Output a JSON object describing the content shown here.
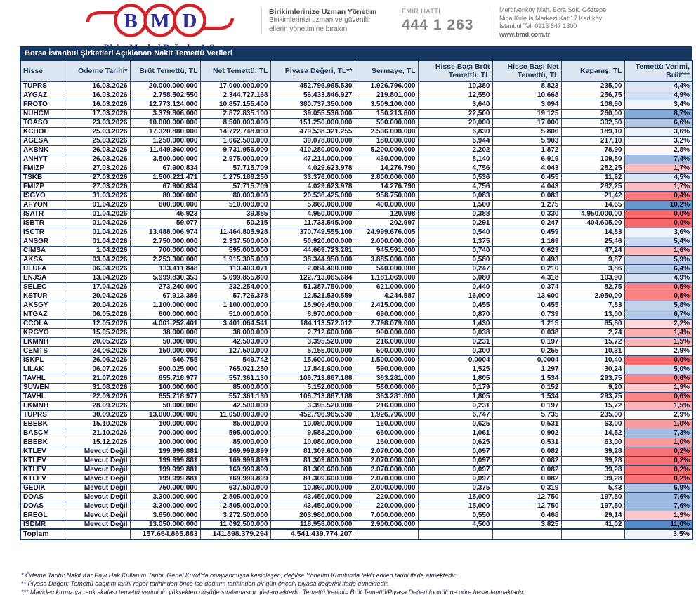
{
  "header": {
    "logo": {
      "letters": [
        "B",
        "M",
        "D"
      ],
      "company": "Bizim Menkul Değerler A.Ş."
    },
    "slogan": {
      "title": "Birikimlerinize Uzman Yönetim",
      "line1": "Birikimlerinizi uzman ve güvenilir",
      "line2": "ellerin yönetimine bırakın"
    },
    "order_line": {
      "label": "EMİR HATTI",
      "number": "444 1 263"
    },
    "address": {
      "line1": "Merdivenköy Mah. Bora Sok. Göztepe",
      "line2": "Nida Kule İş Merkezi Kat:17 Kadıköy",
      "line3": "İstanbul    Tel: 0216 547 1300",
      "website": "www.bmd.com.tr"
    }
  },
  "table": {
    "title": "Borsa İstanbul Şirketleri Açıklanan Nakit Temettü Verileri",
    "columns": [
      "Hisse",
      "Ödeme Tarihi*",
      "Brüt Temettü, TL",
      "Net Temettü, TL",
      "Piyasa Değeri, TL**",
      "Sermaye, TL",
      "Hisse Başı Brüt Temettü, TL",
      "Hisse Başı Net Temettü, TL",
      "Kapanış, TL",
      "Temettü Verimi, Brüt***"
    ],
    "rows": [
      [
        "TUPRS",
        "16.03.2026",
        "20.000.000.000",
        "17.000.000.000",
        "452.796.965.530",
        "1.926.796.000",
        "10,380",
        "8,823",
        "235,00",
        "4,4%",
        4.4
      ],
      [
        "AYGAZ",
        "16.03.2026",
        "2.758.502.550",
        "2.344.727.168",
        "56.433.846.927",
        "219.801.000",
        "12,550",
        "10,668",
        "256,75",
        "4,9%",
        4.9
      ],
      [
        "FROTO",
        "16.03.2026",
        "12.773.124.000",
        "10.857.155.400",
        "380.737.350.000",
        "3.509.100.000",
        "3,640",
        "3,094",
        "108,50",
        "3,4%",
        3.4
      ],
      [
        "NUHCM",
        "17.03.2026",
        "3.379.806.000",
        "2.872.835.100",
        "39.055.536.000",
        "150.213.600",
        "22,500",
        "19,125",
        "260,00",
        "8,7%",
        8.7
      ],
      [
        "TOASO",
        "23.03.2026",
        "10.000.000.000",
        "8.500.000.000",
        "151.250.000.000",
        "500.000.000",
        "20,000",
        "17,000",
        "302,50",
        "6,6%",
        6.6
      ],
      [
        "KCHOL",
        "25.03.2026",
        "17.320.880.000",
        "14.722.748.000",
        "479.538.321.255",
        "2.536.000.000",
        "6,830",
        "5,806",
        "189,10",
        "3,6%",
        3.6
      ],
      [
        "AGESA",
        "25.03.2026",
        "1.250.000.000",
        "1.062.500.000",
        "39.078.000.000",
        "180.000.000",
        "6,944",
        "5,903",
        "217,10",
        "3,2%",
        3.2
      ],
      [
        "AKBNK",
        "26.03.2026",
        "11.449.360.000",
        "9.731.956.000",
        "410.280.000.000",
        "5.200.000.000",
        "2,202",
        "1,872",
        "78,90",
        "2,8%",
        2.8
      ],
      [
        "ANHYT",
        "26.03.2026",
        "3.500.000.000",
        "2.975.000.000",
        "47.214.000.000",
        "430.000.000",
        "8,140",
        "6,919",
        "109,80",
        "7,4%",
        7.4
      ],
      [
        "FMIZP",
        "27.03.2026",
        "67.900.834",
        "57.715.709",
        "4.029.623.978",
        "14.276.790",
        "4,756",
        "4,043",
        "282,25",
        "1,7%",
        1.7
      ],
      [
        "TSKB",
        "27.03.2026",
        "1.500.221.471",
        "1.275.188.250",
        "33.376.000.000",
        "2.800.000.000",
        "0,536",
        "0,455",
        "11,92",
        "4,5%",
        4.5
      ],
      [
        "FMIZP",
        "27.03.2026",
        "67.900.834",
        "57.715.709",
        "4.029.623.978",
        "14.276.790",
        "4,756",
        "4,043",
        "282,25",
        "1,7%",
        1.7
      ],
      [
        "ISGYO",
        "31.03.2026",
        "80.000.000",
        "80.000.000",
        "20.536.425.000",
        "958.750.000",
        "0,083",
        "0,083",
        "21,42",
        "0,4%",
        0.4
      ],
      [
        "AFYON",
        "01.04.2026",
        "600.000.000",
        "510.000.000",
        "5.860.000.000",
        "400.000.000",
        "1,500",
        "1,275",
        "14,65",
        "10,2%",
        10.2
      ],
      [
        "ISATR",
        "01.04.2026",
        "46.923",
        "39.885",
        "4.950.000.000",
        "120.998",
        "0,388",
        "0,330",
        "4.950.000,00",
        "0,0%",
        0.0
      ],
      [
        "ISBTR",
        "01.04.2026",
        "59.077",
        "50.215",
        "11.733.545.000",
        "202.997",
        "0,291",
        "0,247",
        "404.605,00",
        "0,0%",
        0.0
      ],
      [
        "ISCTR",
        "01.04.2026",
        "13.488.006.974",
        "11.464.805.928",
        "370.749.555.100",
        "24.999.676.005",
        "0,540",
        "0,459",
        "14,83",
        "3,6%",
        3.6
      ],
      [
        "ANSGR",
        "01.04.2026",
        "2.750.000.000",
        "2.337.500.000",
        "50.920.000.000",
        "2.000.000.000",
        "1,375",
        "1,169",
        "25,46",
        "5,4%",
        5.4
      ],
      [
        "CIMSA",
        "1.04.2026",
        "700.000.000",
        "595.000.000",
        "44.669.723.281",
        "945.591.000",
        "0,740",
        "0,629",
        "47,24",
        "1,6%",
        1.6
      ],
      [
        "AKSA",
        "03.04.2026",
        "2.253.300.000",
        "1.915.305.000",
        "38.344.950.000",
        "3.885.000.000",
        "0,580",
        "0,493",
        "9,87",
        "5,9%",
        5.9
      ],
      [
        "ULUFA",
        "06.04.2026",
        "133.411.848",
        "113.400.071",
        "2.084.400.000",
        "540.000.000",
        "0,247",
        "0,210",
        "3,86",
        "6,4%",
        6.4
      ],
      [
        "ENJSA",
        "13.04.2026",
        "5.999.830.353",
        "5.099.855.800",
        "122.713.065.684",
        "1.181.069.000",
        "5,080",
        "4,318",
        "103,90",
        "4,9%",
        4.9
      ],
      [
        "SELEC",
        "17.04.2026",
        "273.240.000",
        "232.254.000",
        "51.387.750.000",
        "621.000.000",
        "0,440",
        "0,374",
        "82,75",
        "0,5%",
        0.5
      ],
      [
        "KSTUR",
        "20.04.2026",
        "67.913.386",
        "57.726.378",
        "12.521.530.559",
        "4.244.587",
        "16,000",
        "13,600",
        "2.950,00",
        "0,5%",
        0.5
      ],
      [
        "AKSGY",
        "20.04.2026",
        "1.100.000.000",
        "1.100.000.000",
        "18.909.450.000",
        "2.415.000.000",
        "0,455",
        "0,455",
        "7,83",
        "5,8%",
        5.8
      ],
      [
        "NTGAZ",
        "06.05.2026",
        "600.000.000",
        "510.000.000",
        "8.970.000.000",
        "690.000.000",
        "0,870",
        "0,739",
        "13,00",
        "6,7%",
        6.7
      ],
      [
        "CCOLA",
        "12.05.2026",
        "4.001.252.401",
        "3.401.064.541",
        "184.113.572.012",
        "2.798.079.000",
        "1,430",
        "1,215",
        "65,80",
        "2,2%",
        2.2
      ],
      [
        "KRGYO",
        "15.05.2026",
        "38.000.000",
        "38.000.000",
        "2.712.600.000",
        "990.000.000",
        "0,038",
        "0,038",
        "2,74",
        "1,4%",
        1.4
      ],
      [
        "LKMNH",
        "20.05.2026",
        "50.000.000",
        "42.500.000",
        "3.395.520.000",
        "216.000.000",
        "0,231",
        "0,197",
        "15,72",
        "1,5%",
        1.5
      ],
      [
        "CEMTS",
        "24.06.2026",
        "150.000.000",
        "127.500.000",
        "5.155.000.000",
        "500.000.000",
        "0,300",
        "0,255",
        "10,31",
        "2,9%",
        2.9
      ],
      [
        "ISKPL",
        "26.06.2026",
        "646.755",
        "549.742",
        "15.600.000.000",
        "1.500.000.000",
        "0,0004",
        "0,0004",
        "10,40",
        "0,0%",
        0.0
      ],
      [
        "LILAK",
        "06.07.2026",
        "900.025.000",
        "765.021.250",
        "17.841.600.000",
        "590.000.000",
        "1,525",
        "1,297",
        "30,24",
        "5,0%",
        5.0
      ],
      [
        "TAVHL",
        "21.07.2026",
        "655.718.977",
        "557.361.130",
        "106.713.867.188",
        "363.281.000",
        "1,805",
        "1,534",
        "293,75",
        "0,6%",
        0.6
      ],
      [
        "SUWEN",
        "31.08.2026",
        "100.000.000",
        "85.000.000",
        "5.152.000.000",
        "560.000.000",
        "0,179",
        "0,152",
        "9,20",
        "1,9%",
        1.9
      ],
      [
        "TAVHL",
        "22.09.2026",
        "655.718.977",
        "557.361.130",
        "106.713.867.188",
        "363.281.000",
        "1,805",
        "1,534",
        "293,75",
        "0,6%",
        0.6
      ],
      [
        "LKMNH",
        "28.09.2026",
        "50.000.000",
        "42.500.000",
        "3.395.520.000",
        "216.000.000",
        "0,231",
        "0,197",
        "15,72",
        "1,5%",
        1.5
      ],
      [
        "TUPRS",
        "30.09.2026",
        "13.000.000.000",
        "11.050.000.000",
        "452.796.965.530",
        "1.926.796.000",
        "6,747",
        "5,735",
        "235,00",
        "2,9%",
        2.9
      ],
      [
        "EBEBK",
        "15.10.2026",
        "100.000.000",
        "85.000.000",
        "10.080.000.000",
        "160.000.000",
        "0,625",
        "0,531",
        "63,00",
        "1,0%",
        1.0
      ],
      [
        "BASCM",
        "21.10.2026",
        "700.000.000",
        "595.000.000",
        "9.583.200.000",
        "660.000.000",
        "1,061",
        "0,902",
        "14,52",
        "7,3%",
        7.3
      ],
      [
        "EBEBK",
        "15.12.2026",
        "100.000.000",
        "85.000.000",
        "10.080.000.000",
        "160.000.000",
        "0,625",
        "0,531",
        "63,00",
        "1,0%",
        1.0
      ],
      [
        "KTLEV",
        "Mevcut Değil",
        "199.999.881",
        "169.999.899",
        "81.309.600.000",
        "2.070.000.000",
        "0,097",
        "0,082",
        "39,28",
        "0,2%",
        0.2
      ],
      [
        "KTLEV",
        "Mevcut Değil",
        "199.999.881",
        "169.999.899",
        "81.309.600.000",
        "2.070.000.000",
        "0,097",
        "0,082",
        "39,28",
        "0,2%",
        0.2
      ],
      [
        "KTLEV",
        "Mevcut Değil",
        "199.999.881",
        "169.999.899",
        "81.309.600.000",
        "2.070.000.000",
        "0,097",
        "0,082",
        "39,28",
        "0,2%",
        0.2
      ],
      [
        "KTLEV",
        "Mevcut Değil",
        "199.999.881",
        "169.999.899",
        "81.309.600.000",
        "2.070.000.000",
        "0,097",
        "0,082",
        "39,28",
        "0,2%",
        0.2
      ],
      [
        "GEDIK",
        "Mevcut Değil",
        "750.000.000",
        "637.500.000",
        "10.860.000.000",
        "2.000.000.000",
        "0,375",
        "0,319",
        "5,43",
        "6,9%",
        6.9
      ],
      [
        "DOAS",
        "Mevcut Değil",
        "3.300.000.000",
        "2.805.000.000",
        "43.450.000.000",
        "220.000.000",
        "15,000",
        "12,750",
        "197,50",
        "7,6%",
        7.6
      ],
      [
        "DOAS",
        "Mevcut Değil",
        "3.300.000.000",
        "2.805.000.000",
        "43.450.000.000",
        "220.000.000",
        "15,000",
        "12,750",
        "197,50",
        "7,6%",
        7.6
      ],
      [
        "EREGL",
        "Mevcut Değil",
        "3.850.000.000",
        "3.272.500.000",
        "203.980.000.000",
        "7.000.000.000",
        "0,550",
        "0,468",
        "29,14",
        "1,9%",
        1.9
      ],
      [
        "ISDMR",
        "Mevcut Değil",
        "13.050.000.000",
        "11.092.500.000",
        "118.958.000.000",
        "2.900.000.000",
        "4,500",
        "3,825",
        "41,02",
        "11,0%",
        11.0
      ]
    ],
    "total": {
      "label": "Toplam",
      "gross": "157.664.865.883",
      "net": "141.898.379.294",
      "market_value": "4.541.439.774.207",
      "yield_label": "3,5%",
      "yield_value": 3.5
    },
    "yield_scale": {
      "min_color": "#F8696B",
      "mid_color": "#FCFCFF",
      "max_color": "#5A8AC6",
      "min_value": 0,
      "mid_value": 2.9,
      "max_value": 11
    }
  },
  "footnotes": [
    "* Ödeme Tarihi: Nakit Kar Payı Hak Kullanım Tarihi. Genel Kurul'da onaylanmışsa kesinleşen, değilse Yönetim Kurulunda teklif edilen tarihi ifade etmektedir.",
    "** Piyasa Değeri: Temettü dağıtım tarihi rapor tarihinden önce ise dağıtım tarihinden bir gün önceki piyasa değerini ifade etmektedir.",
    "*** Maviden kırmızıya renk skalası temettü veriminin yüksekten düşüğe sıralamasını göstermektedir. Temettü Verimi= Brüt Temettü/Piyasa Değeri formülüne göre hesaplanmaktadır."
  ],
  "colors": {
    "title_bar": "#17375e",
    "header_bg": "#dce6f1",
    "border": "#2a4a7f",
    "logo_red": "#d2232a",
    "logo_navy": "#2e3192"
  }
}
